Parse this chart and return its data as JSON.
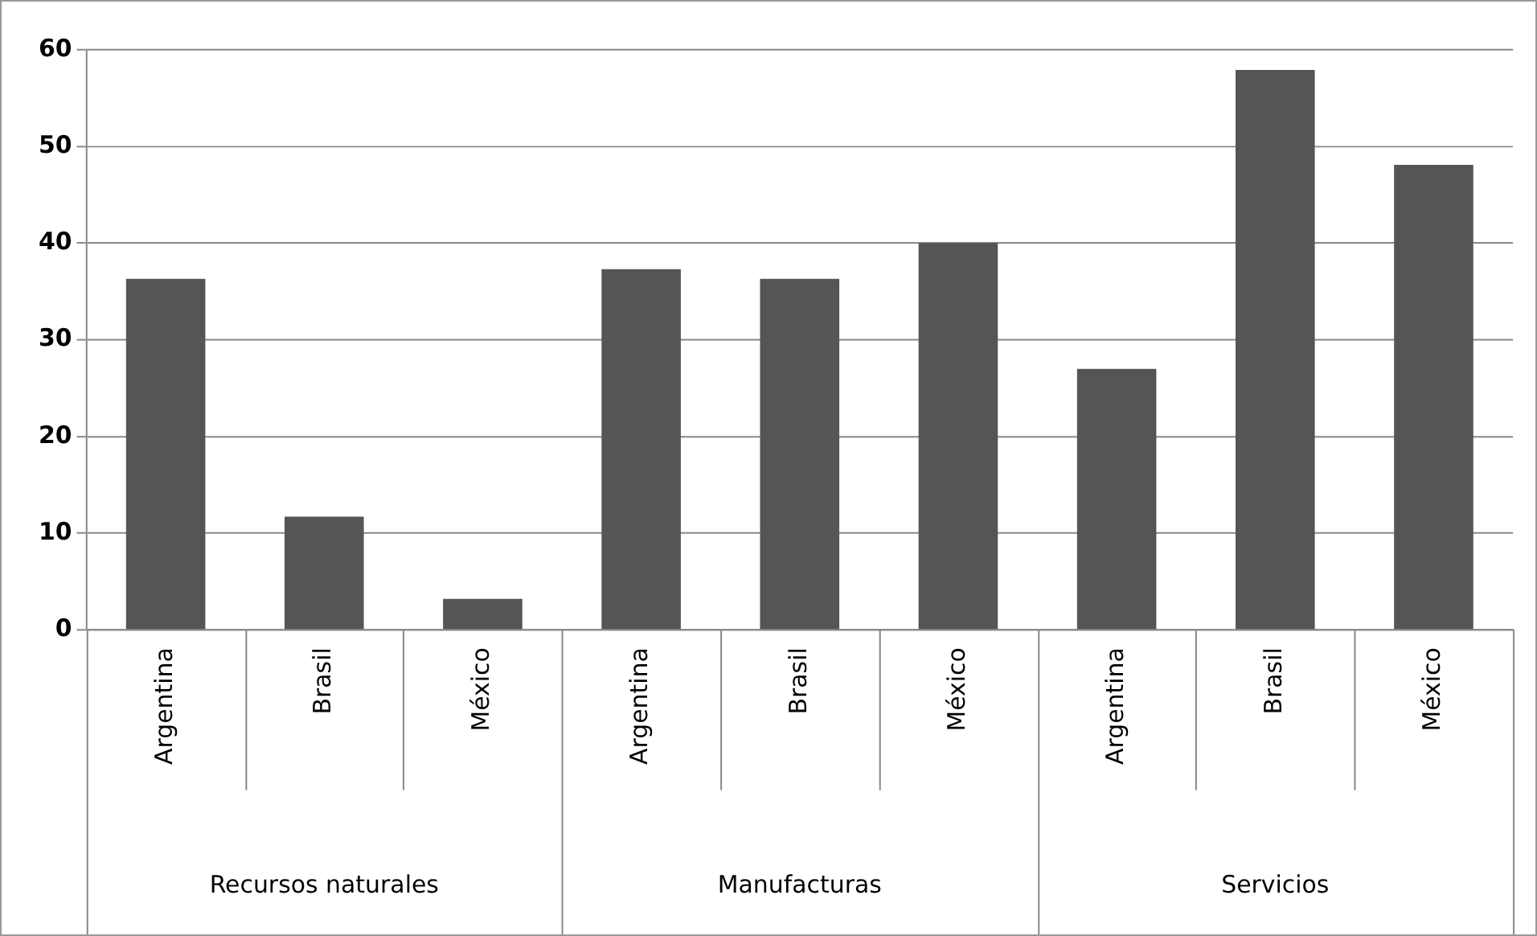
{
  "chart_data": {
    "type": "bar",
    "categories": [
      "Argentina",
      "Brasil",
      "México",
      "Argentina",
      "Brasil",
      "México",
      "Argentina",
      "Brasil",
      "México"
    ],
    "values": [
      36.3,
      11.7,
      3.2,
      37.3,
      36.3,
      40,
      27,
      57.9,
      48.1
    ],
    "color": "#555555",
    "annotations": [
      "Recursos naturales",
      "Manufacturas",
      "Servicios"
    ],
    "ylim": [
      0,
      60
    ],
    "yticks": [
      0,
      10,
      20,
      30,
      40,
      50,
      60
    ],
    "grid": "y",
    "legend": false
  }
}
